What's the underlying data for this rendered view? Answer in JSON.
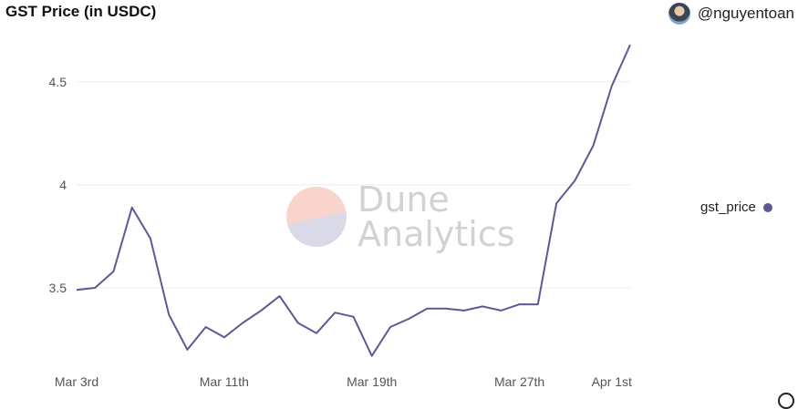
{
  "header": {
    "title": "GST Price (in USDC)",
    "username": "@nguyentoan"
  },
  "watermark": {
    "line1": "Dune",
    "line2": "Analytics"
  },
  "legend": {
    "label": "gst_price"
  },
  "colors": {
    "line": "#5b5a94",
    "grid": "#ececec"
  },
  "chart_data": {
    "type": "line",
    "series": [
      {
        "name": "gst_price",
        "values": [
          3.49,
          3.5,
          3.58,
          3.89,
          3.74,
          3.37,
          3.2,
          3.31,
          3.26,
          3.33,
          3.39,
          3.46,
          3.33,
          3.28,
          3.38,
          3.36,
          3.17,
          3.31,
          3.35,
          3.4,
          3.4,
          3.39,
          3.41,
          3.39,
          3.42,
          3.42,
          3.91,
          4.02,
          4.19,
          4.48,
          4.68
        ]
      }
    ],
    "x": [
      "Mar 3rd",
      "",
      "",
      "",
      "",
      "",
      "",
      "",
      "Mar 11th",
      "",
      "",
      "",
      "",
      "",
      "",
      "",
      "Mar 19th",
      "",
      "",
      "",
      "",
      "",
      "",
      "",
      "Mar 27th",
      "",
      "",
      "",
      "",
      "Apr 1st",
      ""
    ],
    "x_ticks": [
      "Mar 3rd",
      "Mar 11th",
      "Mar 19th",
      "Mar 27th",
      "Apr 1st"
    ],
    "y_ticks": [
      "3.5",
      "4",
      "4.5"
    ],
    "ylim": [
      3.12,
      4.72
    ],
    "grid": true,
    "legend_position": "right"
  }
}
